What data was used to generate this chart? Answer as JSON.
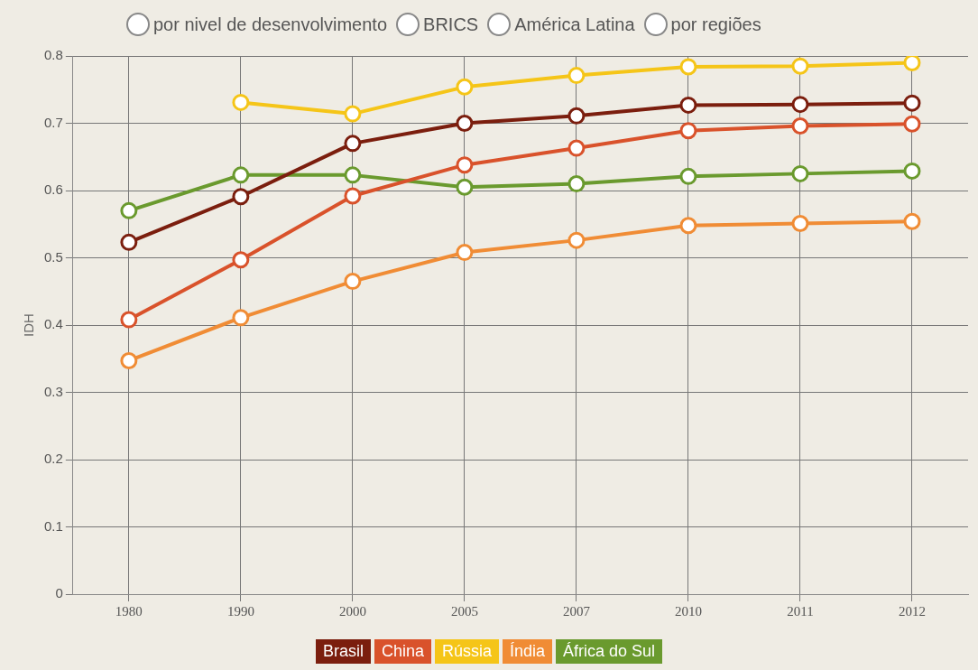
{
  "chart_data": {
    "type": "line",
    "ylabel": "IDH",
    "annotations": [
      "por nivel de desenvolvimento",
      "BRICS",
      "América Latina",
      "por regiões"
    ],
    "categories": [
      "1980",
      "1990",
      "2000",
      "2005",
      "2007",
      "2010",
      "2011",
      "2012"
    ],
    "series": [
      {
        "name": "Brasil",
        "color": "#7b1e0e",
        "values": [
          0.523,
          0.591,
          0.67,
          0.7,
          0.711,
          0.727,
          0.728,
          0.73
        ]
      },
      {
        "name": "China",
        "color": "#d9522b",
        "values": [
          0.408,
          0.497,
          0.592,
          0.638,
          0.663,
          0.689,
          0.696,
          0.699
        ]
      },
      {
        "name": "Rússia",
        "color": "#f5c518",
        "values": [
          null,
          0.731,
          0.714,
          0.754,
          0.771,
          0.784,
          0.785,
          0.79
        ]
      },
      {
        "name": "Índia",
        "color": "#f08c35",
        "values": [
          0.347,
          0.411,
          0.465,
          0.508,
          0.526,
          0.548,
          0.551,
          0.554
        ]
      },
      {
        "name": "África do Sul",
        "color": "#6a9a2e",
        "values": [
          0.57,
          0.623,
          0.623,
          0.605,
          0.61,
          0.621,
          0.625,
          0.629
        ]
      }
    ],
    "ylim": [
      0,
      0.8
    ],
    "yticks": [
      0,
      0.1,
      0.2,
      0.3,
      0.4,
      0.5,
      0.6,
      0.7,
      0.8
    ],
    "grid": true,
    "legend": "bottom",
    "marker": "circle",
    "line_style": "solid"
  }
}
